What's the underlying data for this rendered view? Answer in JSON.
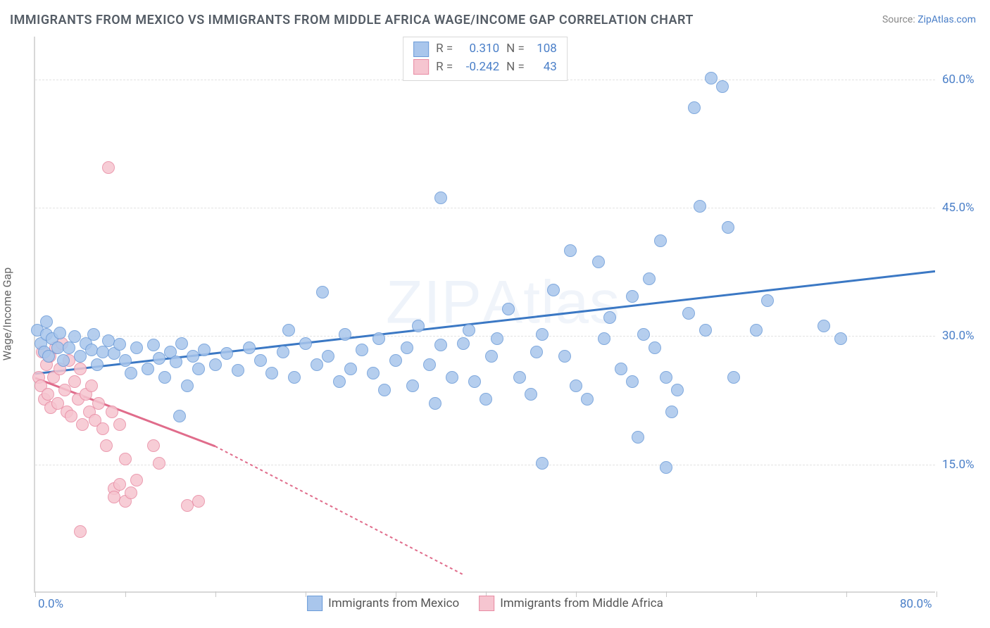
{
  "title": "IMMIGRANTS FROM MEXICO VS IMMIGRANTS FROM MIDDLE AFRICA WAGE/INCOME GAP CORRELATION CHART",
  "source_prefix": "Source: ",
  "source_link": "ZipAtlas.com",
  "y_axis_label": "Wage/Income Gap",
  "watermark": "ZIPAtlas",
  "chart": {
    "type": "scatter",
    "xlim": [
      0,
      80
    ],
    "ylim": [
      0,
      65
    ],
    "x_ticks": [
      0,
      8,
      16,
      24,
      32,
      40,
      48,
      56,
      64,
      72,
      80
    ],
    "x_tick_labels": {
      "0": "0.0%",
      "80": "80.0%"
    },
    "y_gridlines": [
      15,
      30,
      45,
      60
    ],
    "y_tick_labels": {
      "15": "15.0%",
      "30": "30.0%",
      "45": "45.0%",
      "60": "60.0%"
    },
    "background_color": "#ffffff",
    "grid_color": "#e3e3e3",
    "axis_color": "#d8d8d8",
    "tick_label_color": "#4a7fc8",
    "marker_radius": 9,
    "marker_stroke_width": 1.5,
    "marker_fill_opacity": 0.35
  },
  "series": [
    {
      "id": "mexico",
      "label": "Immigrants from Mexico",
      "color_fill": "#a9c6ec",
      "color_stroke": "#6b9bd8",
      "trend_color": "#3b78c4",
      "trend_width": 3,
      "R": "0.310",
      "N": "108",
      "trend": {
        "x1": 0,
        "y1": 25.5,
        "x2": 80,
        "y2": 37.5,
        "dash": "none"
      },
      "points": [
        [
          0.2,
          30.5
        ],
        [
          0.5,
          29.0
        ],
        [
          0.8,
          28.0
        ],
        [
          1.0,
          30.0
        ],
        [
          1.0,
          31.5
        ],
        [
          1.2,
          27.5
        ],
        [
          1.5,
          29.5
        ],
        [
          2.0,
          28.5
        ],
        [
          2.2,
          30.2
        ],
        [
          2.5,
          27.0
        ],
        [
          3.0,
          28.5
        ],
        [
          3.5,
          29.8
        ],
        [
          4.0,
          27.5
        ],
        [
          4.5,
          29.0
        ],
        [
          5.0,
          28.2
        ],
        [
          5.2,
          30.0
        ],
        [
          5.5,
          26.5
        ],
        [
          6.0,
          28.0
        ],
        [
          6.5,
          29.3
        ],
        [
          7.0,
          27.8
        ],
        [
          7.5,
          28.9
        ],
        [
          8.0,
          27.0
        ],
        [
          8.5,
          25.5
        ],
        [
          9.0,
          28.5
        ],
        [
          10.0,
          26.0
        ],
        [
          10.5,
          28.8
        ],
        [
          11.0,
          27.2
        ],
        [
          11.5,
          25.0
        ],
        [
          12.0,
          28.0
        ],
        [
          12.5,
          26.8
        ],
        [
          13.0,
          29.0
        ],
        [
          13.5,
          24.0
        ],
        [
          14.0,
          27.5
        ],
        [
          14.5,
          26.0
        ],
        [
          12.8,
          20.5
        ],
        [
          15.0,
          28.2
        ],
        [
          16.0,
          26.5
        ],
        [
          17.0,
          27.8
        ],
        [
          18.0,
          25.8
        ],
        [
          19.0,
          28.5
        ],
        [
          20.0,
          27.0
        ],
        [
          21.0,
          25.5
        ],
        [
          22.0,
          28.0
        ],
        [
          22.5,
          30.5
        ],
        [
          23.0,
          25.0
        ],
        [
          24.0,
          29.0
        ],
        [
          25.0,
          26.5
        ],
        [
          25.5,
          35.0
        ],
        [
          26.0,
          27.5
        ],
        [
          27.0,
          24.5
        ],
        [
          27.5,
          30.0
        ],
        [
          28.0,
          26.0
        ],
        [
          29.0,
          28.2
        ],
        [
          30.0,
          25.5
        ],
        [
          30.5,
          29.5
        ],
        [
          31.0,
          23.5
        ],
        [
          32.0,
          27.0
        ],
        [
          33.0,
          28.5
        ],
        [
          33.5,
          24.0
        ],
        [
          34.0,
          31.0
        ],
        [
          35.0,
          26.5
        ],
        [
          35.5,
          22.0
        ],
        [
          36.0,
          46.0
        ],
        [
          36.0,
          28.8
        ],
        [
          37.0,
          25.0
        ],
        [
          38.0,
          29.0
        ],
        [
          38.5,
          30.5
        ],
        [
          39.0,
          24.5
        ],
        [
          40.0,
          22.5
        ],
        [
          40.5,
          27.5
        ],
        [
          41.0,
          29.5
        ],
        [
          42.0,
          33.0
        ],
        [
          43.0,
          25.0
        ],
        [
          44.0,
          23.0
        ],
        [
          44.5,
          28.0
        ],
        [
          45.0,
          30.0
        ],
        [
          45.0,
          15.0
        ],
        [
          46.0,
          35.2
        ],
        [
          47.0,
          27.5
        ],
        [
          47.5,
          39.8
        ],
        [
          48.0,
          24.0
        ],
        [
          49.0,
          22.5
        ],
        [
          50.0,
          38.5
        ],
        [
          50.5,
          29.5
        ],
        [
          51.0,
          32.0
        ],
        [
          53.5,
          18.0
        ],
        [
          52.0,
          26.0
        ],
        [
          53.0,
          24.5
        ],
        [
          53.0,
          34.5
        ],
        [
          54.0,
          30.0
        ],
        [
          54.5,
          36.5
        ],
        [
          55.0,
          28.5
        ],
        [
          55.5,
          41.0
        ],
        [
          56.0,
          14.5
        ],
        [
          56.5,
          21.0
        ],
        [
          57.0,
          23.5
        ],
        [
          58.0,
          32.5
        ],
        [
          58.5,
          56.5
        ],
        [
          59.0,
          45.0
        ],
        [
          59.5,
          30.5
        ],
        [
          60.0,
          60.0
        ],
        [
          61.0,
          59.0
        ],
        [
          61.5,
          42.5
        ],
        [
          62.0,
          25.0
        ],
        [
          64.0,
          30.5
        ],
        [
          65.0,
          34.0
        ],
        [
          71.5,
          29.5
        ],
        [
          70.0,
          31.0
        ],
        [
          56.0,
          25.0
        ]
      ]
    },
    {
      "id": "middle_africa",
      "label": "Immigrants from Middle Africa",
      "color_fill": "#f6c5d0",
      "color_stroke": "#e88ba3",
      "trend_color": "#e06c8b",
      "trend_width": 3,
      "R": "-0.242",
      "N": "43",
      "trend": {
        "x1": 0,
        "y1": 25.0,
        "x2_solid": 16,
        "y2_solid": 17.0,
        "x2": 38,
        "y2": 2.0,
        "dash": "4 4"
      },
      "points": [
        [
          0.3,
          25.0
        ],
        [
          0.5,
          24.0
        ],
        [
          0.6,
          28.0
        ],
        [
          0.8,
          22.5
        ],
        [
          1.0,
          26.5
        ],
        [
          1.1,
          23.0
        ],
        [
          1.3,
          27.5
        ],
        [
          1.4,
          21.5
        ],
        [
          1.6,
          25.0
        ],
        [
          1.8,
          28.5
        ],
        [
          2.0,
          22.0
        ],
        [
          2.2,
          26.0
        ],
        [
          2.4,
          29.0
        ],
        [
          2.6,
          23.5
        ],
        [
          2.8,
          21.0
        ],
        [
          3.0,
          27.0
        ],
        [
          3.2,
          20.5
        ],
        [
          3.5,
          24.5
        ],
        [
          3.8,
          22.5
        ],
        [
          4.0,
          26.0
        ],
        [
          4.2,
          19.5
        ],
        [
          4.5,
          23.0
        ],
        [
          4.8,
          21.0
        ],
        [
          5.0,
          24.0
        ],
        [
          5.3,
          20.0
        ],
        [
          5.6,
          22.0
        ],
        [
          6.0,
          19.0
        ],
        [
          6.3,
          17.0
        ],
        [
          6.8,
          21.0
        ],
        [
          4.0,
          7.0
        ],
        [
          7.0,
          12.0
        ],
        [
          7.5,
          19.5
        ],
        [
          8.0,
          15.5
        ],
        [
          6.5,
          49.5
        ],
        [
          7.0,
          11.0
        ],
        [
          7.5,
          12.5
        ],
        [
          8.0,
          10.5
        ],
        [
          8.5,
          11.5
        ],
        [
          9.0,
          13.0
        ],
        [
          10.5,
          17.0
        ],
        [
          11.0,
          15.0
        ],
        [
          13.5,
          10.0
        ],
        [
          14.5,
          10.5
        ]
      ]
    }
  ],
  "stats_box": {
    "r_label": "R =",
    "n_label": "N ="
  },
  "legend": {
    "series1": "Immigrants from Mexico",
    "series2": "Immigrants from Middle Africa"
  }
}
